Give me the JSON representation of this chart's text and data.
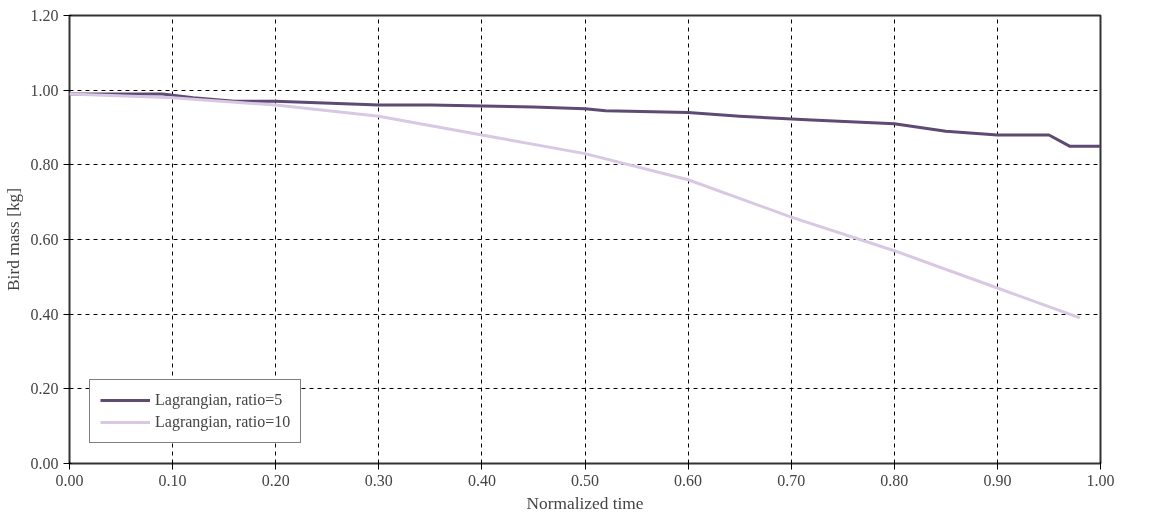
{
  "chart_data": {
    "type": "line",
    "xlabel": "Normalized time",
    "ylabel": "Bird mass [kg]",
    "xlim": [
      0,
      1
    ],
    "ylim": [
      0,
      1.2
    ],
    "xticks": [
      {
        "value": 0,
        "label": "0.00"
      },
      {
        "value": 0.1,
        "label": "0.10"
      },
      {
        "value": 0.2,
        "label": "0.20"
      },
      {
        "value": 0.3,
        "label": "0.30"
      },
      {
        "value": 0.4,
        "label": "0.40"
      },
      {
        "value": 0.5,
        "label": "0.50"
      },
      {
        "value": 0.6,
        "label": "0.60"
      },
      {
        "value": 0.7,
        "label": "0.70"
      },
      {
        "value": 0.8,
        "label": "0.80"
      },
      {
        "value": 0.9,
        "label": "0.90"
      },
      {
        "value": 1,
        "label": "1.00"
      }
    ],
    "yticks": [
      {
        "value": 0,
        "label": "0.00"
      },
      {
        "value": 0.2,
        "label": "0.20"
      },
      {
        "value": 0.4,
        "label": "0.40"
      },
      {
        "value": 0.6,
        "label": "0.60"
      },
      {
        "value": 0.8,
        "label": "0.80"
      },
      {
        "value": 1,
        "label": "1.00"
      },
      {
        "value": 1.2,
        "label": "1.20"
      }
    ],
    "grid": true,
    "legend": "bottom left",
    "line_style": "solid",
    "series": [
      {
        "name": "Lagrangian, ratio=5",
        "color": "#5e4a73",
        "x": [
          0,
          0.09,
          0.12,
          0.16,
          0.2,
          0.3,
          0.35,
          0.45,
          0.5,
          0.52,
          0.6,
          0.65,
          0.72,
          0.8,
          0.85,
          0.9,
          0.95,
          0.97,
          1.0
        ],
        "values": [
          0.99,
          0.99,
          0.98,
          0.97,
          0.97,
          0.96,
          0.96,
          0.955,
          0.95,
          0.945,
          0.94,
          0.93,
          0.92,
          0.91,
          0.89,
          0.88,
          0.88,
          0.85,
          0.85
        ]
      },
      {
        "name": "Lagrangian, ratio=10",
        "color": "#d9c8e3",
        "x": [
          0,
          0.1,
          0.2,
          0.3,
          0.4,
          0.5,
          0.6,
          0.7,
          0.8,
          0.9,
          0.98
        ],
        "values": [
          0.99,
          0.98,
          0.96,
          0.93,
          0.88,
          0.83,
          0.76,
          0.66,
          0.57,
          0.47,
          0.39
        ]
      }
    ]
  }
}
